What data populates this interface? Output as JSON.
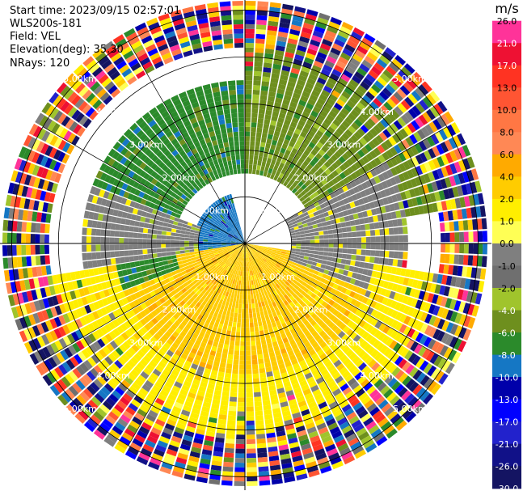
{
  "header": {
    "start_time": "Start time: 2023/09/15 02:57:01",
    "instrument": "WLS200s-181",
    "field": "Field: VEL",
    "elevation": "Elevation(deg): 35.30",
    "nrays": "NRays: 120"
  },
  "chart_data": {
    "type": "heatmap",
    "projection": "polar-ppi",
    "nrays": 120,
    "max_range_km": 5.2,
    "range_rings_km": [
      1,
      2,
      3,
      4,
      5
    ],
    "ring_label_texts": [
      "1.00km",
      "2.00km",
      "3.00km",
      "4.00km",
      "5.00km"
    ],
    "crosshair": true,
    "colorbar": {
      "unit": "m/s",
      "tick_labels": [
        "26.0",
        "21.0",
        "17.0",
        "13.0",
        "10.0",
        "8.0",
        "6.0",
        "4.0",
        "2.0",
        "1.0",
        "0.0",
        "-1.0",
        "-2.0",
        "-4.0",
        "-6.0",
        "-8.0",
        "-10.0",
        "-13.0",
        "-17.0",
        "-21.0",
        "-26.0",
        "-30.0"
      ],
      "colors": [
        "#ff3399",
        "#ee1133",
        "#ff3322",
        "#ff5533",
        "#ff7744",
        "#ff8855",
        "#ffaa00",
        "#ffcc00",
        "#ffee00",
        "#ffff55",
        "#7f7f7f",
        "#6f6f6f",
        "#a0c42c",
        "#6e8f1e",
        "#2b8a2b",
        "#1577c4",
        "#0000aa",
        "#0000ff",
        "#2222cc",
        "#111188",
        "#141462"
      ]
    },
    "velocity_regions": [
      {
        "range_km": [
          0,
          1.1
        ],
        "azimuth_deg": [
          200,
          345
        ],
        "value": -8.0
      },
      {
        "range_km": [
          0,
          1.5
        ],
        "azimuth_deg": [
          140,
          200
        ],
        "value": 10.0
      },
      {
        "range_km": [
          0,
          2.8
        ],
        "azimuth_deg": [
          100,
          260
        ],
        "value": 4.0
      },
      {
        "range_km": [
          1.5,
          3.5
        ],
        "azimuth_deg": [
          250,
          360
        ],
        "value": -6.0
      },
      {
        "range_km": [
          1.5,
          4.2
        ],
        "azimuth_deg": [
          0,
          80
        ],
        "value": -4.0
      },
      {
        "range_km": [
          1.0,
          3.5
        ],
        "azimuth_deg": [
          60,
          110
        ],
        "value": 0.0
      },
      {
        "range_km": [
          1.0,
          3.5
        ],
        "azimuth_deg": [
          260,
          290
        ],
        "value": 0.0
      },
      {
        "range_km": [
          2.8,
          4.2
        ],
        "azimuth_deg": [
          100,
          260
        ],
        "value": 2.0
      },
      {
        "range_km": [
          4.2,
          5.2
        ],
        "azimuth_deg": [
          0,
          360
        ],
        "value": "noise"
      }
    ]
  }
}
